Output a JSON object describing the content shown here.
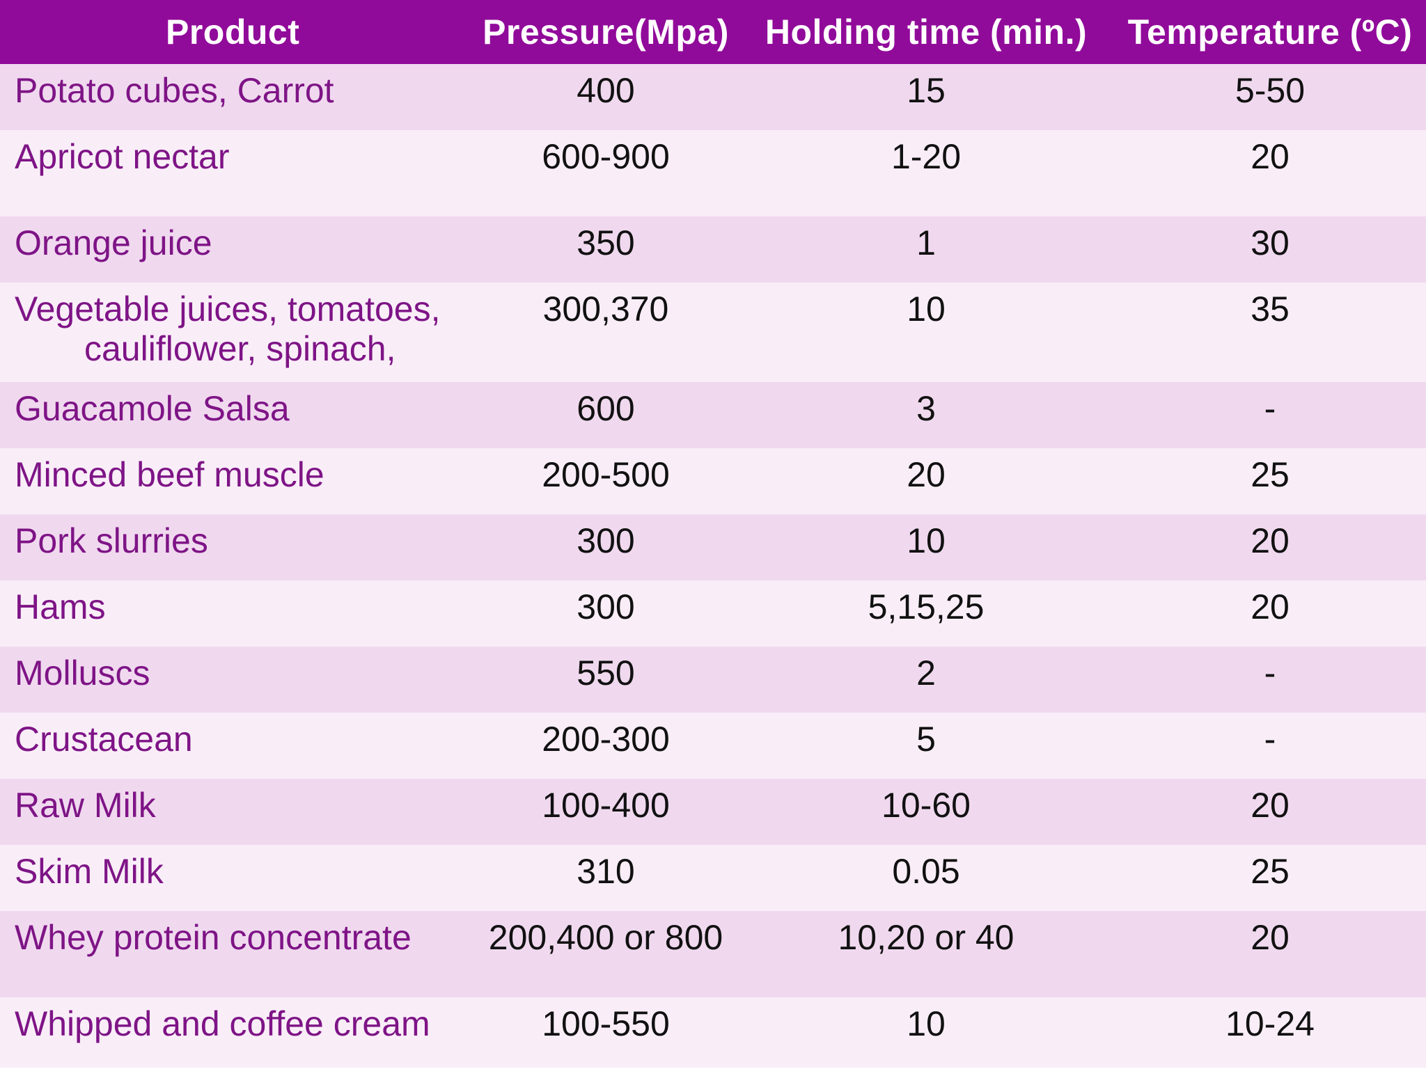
{
  "table": {
    "headers": {
      "product": "Product",
      "pressure": "Pressure(Mpa)",
      "holding_time": "Holding time (min.)",
      "temperature": "Temperature (ºC)"
    },
    "rows": [
      {
        "product": "Potato cubes, Carrot",
        "pressure": "400",
        "holding_time": "15",
        "temperature": "5-50"
      },
      {
        "product": "Apricot nectar",
        "pressure": "600-900",
        "holding_time": "1-20",
        "temperature": "20"
      },
      {
        "product": "Orange juice",
        "pressure": "350",
        "holding_time": "1",
        "temperature": "30"
      },
      {
        "product": "Vegetable juices, tomatoes,",
        "product_line2": "cauliflower, spinach,",
        "pressure": "300,370",
        "holding_time": "10",
        "temperature": "35"
      },
      {
        "product": "Guacamole Salsa",
        "pressure": "600",
        "holding_time": "3",
        "temperature": "-"
      },
      {
        "product": "Minced beef muscle",
        "pressure": "200-500",
        "holding_time": "20",
        "temperature": "25"
      },
      {
        "product": "Pork slurries",
        "pressure": "300",
        "holding_time": "10",
        "temperature": "20"
      },
      {
        "product": "Hams",
        "pressure": "300",
        "holding_time": "5,15,25",
        "temperature": "20"
      },
      {
        "product": "Molluscs",
        "pressure": "550",
        "holding_time": "2",
        "temperature": "-"
      },
      {
        "product": "Crustacean",
        "pressure": "200-300",
        "holding_time": "5",
        "temperature": "-"
      },
      {
        "product": "Raw Milk",
        "pressure": "100-400",
        "holding_time": "10-60",
        "temperature": "20"
      },
      {
        "product": "Skim Milk",
        "pressure": "310",
        "holding_time": "0.05",
        "temperature": "25"
      },
      {
        "product": "Whey protein concentrate",
        "pressure": "200,400 or 800",
        "holding_time": "10,20 or 40",
        "temperature": "20"
      },
      {
        "product": "Whipped and coffee cream",
        "pressure": "100-550",
        "holding_time": "10",
        "temperature": "10-24"
      }
    ]
  },
  "colors": {
    "header_bg": "#910b9a",
    "row_odd_bg": "#f0d9ef",
    "row_even_bg": "#f9eef8",
    "product_text": "#7e1486"
  }
}
